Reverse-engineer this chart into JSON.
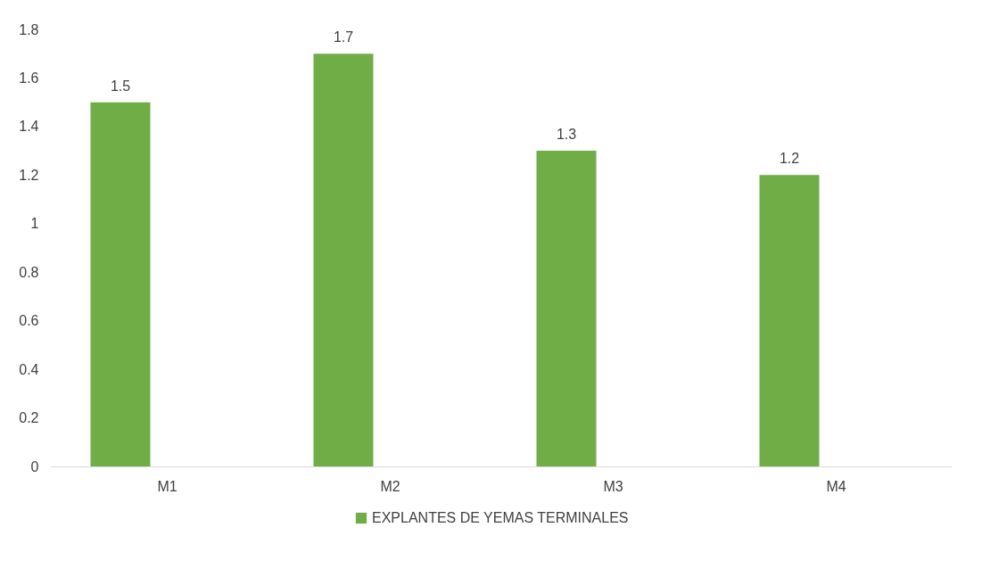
{
  "chart_data": {
    "type": "bar",
    "categories": [
      "M1",
      "M2",
      "M3",
      "M4"
    ],
    "series": [
      {
        "name": "EXPLANTES DE YEMAS TERMINALES",
        "color": "#70ad47",
        "values": [
          1.5,
          1.7,
          1.3,
          1.2
        ]
      }
    ],
    "ylim": [
      0,
      1.8
    ],
    "yticks": [
      {
        "value": 0,
        "label": "0"
      },
      0.2,
      0.4,
      0.6,
      0.8,
      {
        "value": 1,
        "label": "1"
      },
      1.2,
      1.4,
      1.6,
      1.8
    ],
    "grid": false,
    "legend": "bottom",
    "data_labels": true
  }
}
